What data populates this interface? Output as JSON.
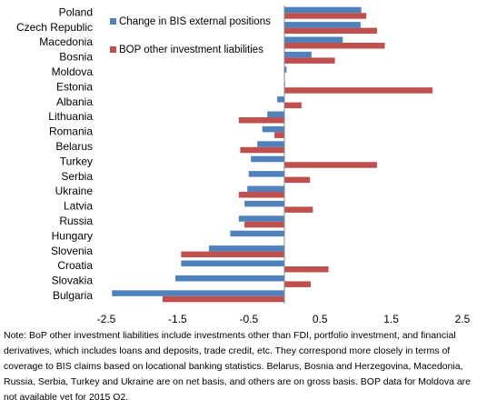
{
  "chart_data": {
    "type": "hbar",
    "categories": [
      "Poland",
      "Czech Republic",
      "Macedonia",
      "Bosnia",
      "Moldova",
      "Estonia",
      "Albania",
      "Lithuania",
      "Romania",
      "Belarus",
      "Turkey",
      "Serbia",
      "Ukraine",
      "Latvia",
      "Russia",
      "Hungary",
      "Slovenia",
      "Croatia",
      "Slovakia",
      "Bulgaria"
    ],
    "series": [
      {
        "name": "Change in BIS external positions",
        "color": "#4f81bd",
        "values": [
          1.08,
          1.07,
          0.82,
          0.38,
          0.03,
          0.01,
          -0.1,
          -0.24,
          -0.31,
          -0.38,
          -0.47,
          -0.5,
          -0.52,
          -0.56,
          -0.64,
          -0.76,
          -1.06,
          -1.45,
          -1.53,
          -2.42
        ]
      },
      {
        "name": "BOP other investment liabilities",
        "color": "#c0504d",
        "values": [
          1.15,
          1.3,
          1.41,
          0.71,
          null,
          2.08,
          0.24,
          -0.64,
          -0.14,
          -0.62,
          1.3,
          0.36,
          -0.64,
          0.4,
          -0.56,
          null,
          -1.45,
          0.62,
          0.37,
          -1.71
        ]
      }
    ],
    "xlim": [
      -2.5,
      2.5
    ],
    "xticks": [
      -2.5,
      -1.5,
      -0.5,
      0.5,
      1.5,
      2.5
    ],
    "legend": "upper left",
    "note": "Note: BoP other investment liabilities include investments other than FDI, portfolio investment, and financial derivatives, which includes loans and deposits, trade credit, etc. They correspond more closely in terms of coverage to BIS claims based on locational banking statistics. Belarus, Bosnia and Herzegovina, Macedonia, Russia, Serbia, Turkey and Ukraine are on net basis, and others are on gross basis. BOP data for Moldova are not available yet for 2015 Q2."
  }
}
